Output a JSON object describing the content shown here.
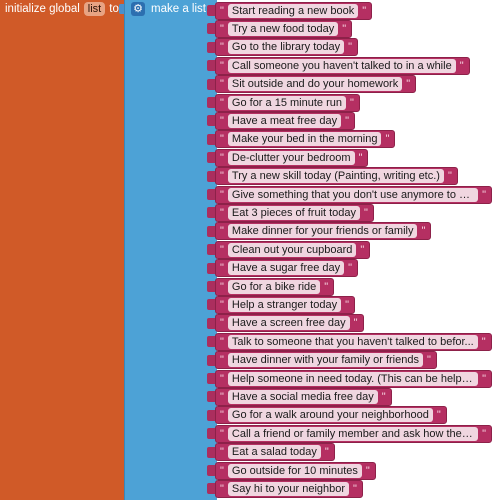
{
  "init": {
    "label_initialize": "initialize global",
    "var_name": "list",
    "label_to": "to"
  },
  "make_list": {
    "label": "make a list",
    "icon": "gear-icon"
  },
  "quote_mark": "\"",
  "items": [
    "Start reading a new book",
    "Try a new food today",
    "Go to the library today",
    "Call someone you haven't talked to in a while",
    "Sit outside and do your homework",
    "Go for a 15 minute run",
    "Have a meat free day",
    "Make your bed in the morning",
    "De-clutter your bedroom",
    "Try a new skill today (Painting, writing etc.)",
    "Give something that you don't use anymore to cha...",
    "Eat 3 pieces of fruit today",
    "Make dinner for your friends or family",
    "Clean out your cupboard",
    "Have a sugar free day",
    "Go for a bike ride",
    "Help a stranger today",
    "Have a screen free day",
    "Talk to someone that you haven't talked to befor...",
    "Have dinner with your family or friends",
    "Help someone in need today. (This can be helping...",
    "Have a social media free day",
    "Go for a walk around your neighborhood",
    "Call a friend or family member and ask how their...",
    "Eat a salad today",
    "Go outside for 10 minutes",
    "Say hi to your neighbor"
  ],
  "colors": {
    "variable_block": "#d05a28",
    "list_block": "#4da2d6",
    "text_block": "#b52f62"
  }
}
